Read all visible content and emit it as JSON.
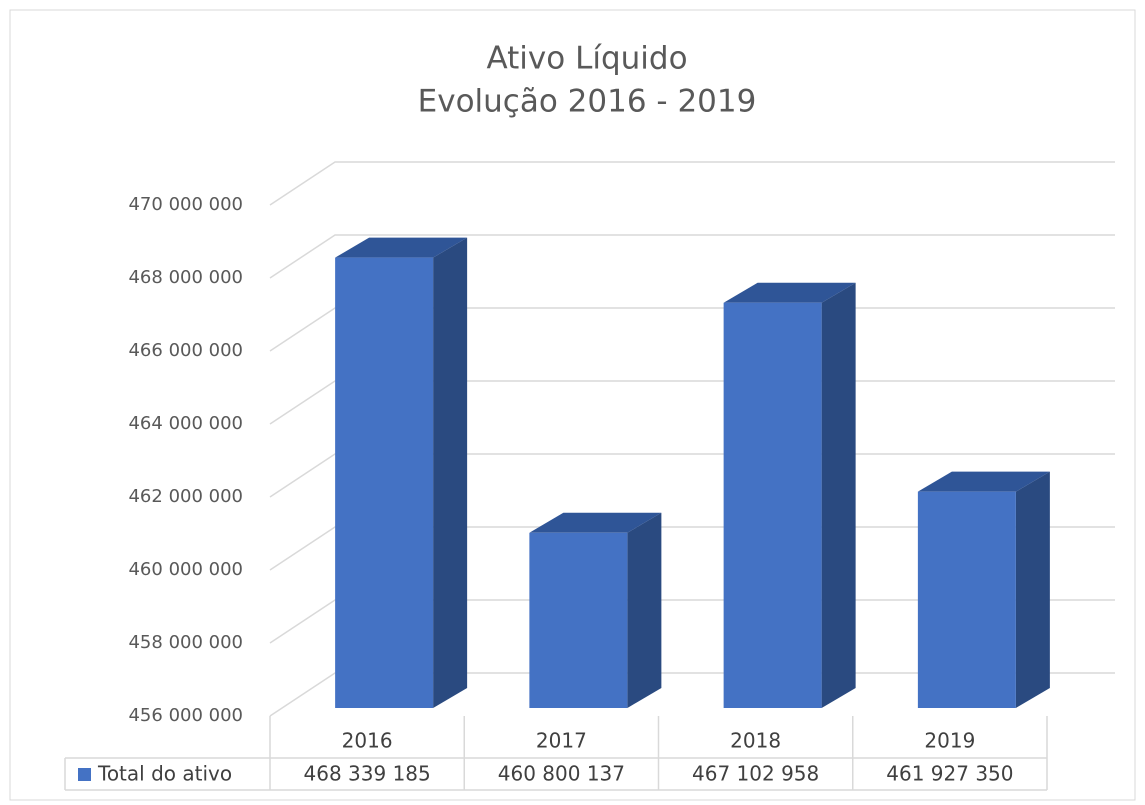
{
  "chart_data": {
    "type": "bar3d",
    "title": "Ativo Líquido",
    "subtitle": "Evolução 2016 - 2019",
    "categories": [
      "2016",
      "2017",
      "2018",
      "2019"
    ],
    "series": [
      {
        "name": "Total do ativo",
        "color": "#4472c4",
        "values": [
          468339185,
          460800137,
          467102958,
          461927350
        ],
        "value_labels": [
          "468 339 185",
          "460 800 137",
          "467 102 958",
          "461 927 350"
        ]
      }
    ],
    "ylim": [
      456000000,
      470000000
    ],
    "yticks": [
      {
        "value": 456000000,
        "label": "456 000 000"
      },
      {
        "value": 458000000,
        "label": "458 000 000"
      },
      {
        "value": 460000000,
        "label": "460 000 000"
      },
      {
        "value": 462000000,
        "label": "462 000 000"
      },
      {
        "value": 464000000,
        "label": "464 000 000"
      },
      {
        "value": 466000000,
        "label": "466 000 000"
      },
      {
        "value": 468000000,
        "label": "468 000 000"
      },
      {
        "value": 470000000,
        "label": "470 000 000"
      }
    ],
    "grid": true,
    "data_table": true
  }
}
